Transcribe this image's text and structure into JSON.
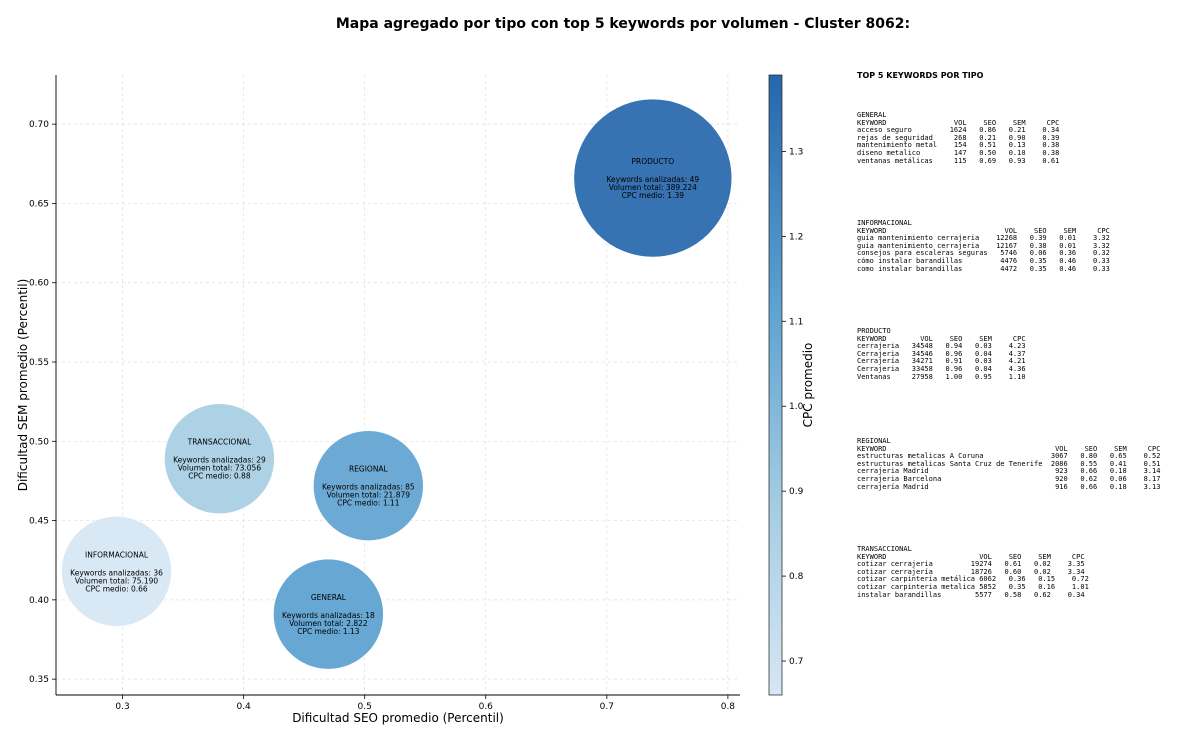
{
  "title": "Mapa agregado por tipo con top 5 keywords por volumen - Cluster 8062:",
  "chart_data": {
    "type": "scatter",
    "xlabel": "Dificultad SEO promedio (Percentil)",
    "ylabel": "Dificultad SEM promedio (Percentil)",
    "xlim": [
      0.245,
      0.81
    ],
    "ylim": [
      0.34,
      0.731
    ],
    "xticks": [
      "0.3",
      "0.4",
      "0.5",
      "0.6",
      "0.7",
      "0.8"
    ],
    "yticks": [
      "0.35",
      "0.40",
      "0.45",
      "0.50",
      "0.55",
      "0.60",
      "0.65",
      "0.70"
    ],
    "grid": true,
    "colorbar": {
      "label": "CPC promedio",
      "range": [
        0.66,
        1.39
      ],
      "ticks": [
        "0.7",
        "0.8",
        "0.9",
        "1.0",
        "1.1",
        "1.2",
        "1.3"
      ]
    },
    "bubble_info": {
      "keywords_label": "Keywords analizadas",
      "volume_label": "Volumen total",
      "cpc_label": "CPC medio"
    },
    "points": [
      {
        "name": "PRODUCTO",
        "x": 0.738,
        "y": 0.666,
        "keywords": "49",
        "volume": "389.224",
        "cpc": "1.39",
        "cpc_value": 1.39,
        "size_value": 389224
      },
      {
        "name": "TRANSACCIONAL",
        "x": 0.38,
        "y": 0.489,
        "keywords": "29",
        "volume": "73.056",
        "cpc": "0.88",
        "cpc_value": 0.88,
        "size_value": 73056
      },
      {
        "name": "REGIONAL",
        "x": 0.503,
        "y": 0.472,
        "keywords": "85",
        "volume": "21.879",
        "cpc": "1.11",
        "cpc_value": 1.11,
        "size_value": 21879
      },
      {
        "name": "INFORMACIONAL",
        "x": 0.295,
        "y": 0.418,
        "keywords": "36",
        "volume": "75.190",
        "cpc": "0.66",
        "cpc_value": 0.66,
        "size_value": 75190
      },
      {
        "name": "GENERAL",
        "x": 0.47,
        "y": 0.391,
        "keywords": "18",
        "volume": "2.822",
        "cpc": "1.13",
        "cpc_value": 1.13,
        "size_value": 2822
      }
    ]
  },
  "panel": {
    "title": "TOP 5 KEYWORDS POR TIPO",
    "groups": [
      {
        "name": "GENERAL",
        "header": "KEYWORD                VOL    SEO    SEM     CPC",
        "rows": [
          "acceso seguro         1624   0.86   0.21    0.34",
          "rejas de seguridad     268   0.21   0.90    0.39",
          "mantenimiento metal    154   0.51   0.13    0.38",
          "diseno metalico        147   0.50   0.10    0.38",
          "ventanas metálicas     115   0.69   0.93    0.61"
        ]
      },
      {
        "name": "INFORMACIONAL",
        "header": "KEYWORD                            VOL    SEO    SEM     CPC",
        "rows": [
          "guia mantenimiento cerrajeria    12268   0.39   0.01    3.32",
          "guia mantenimiento cerrajeria    12167   0.38   0.01    3.32",
          "consejos para escaleras seguras   5746   0.06   0.36    0.32",
          "cómo instalar barandillas         4476   0.35   0.46    0.33",
          "como instalar barandillas         4472   0.35   0.46    0.33"
        ]
      },
      {
        "name": "PRODUCTO",
        "header": "KEYWORD        VOL    SEO    SEM     CPC",
        "rows": [
          "cerrajeria   34548   0.94   0.03    4.23",
          "Cerrajeria   34546   0.96   0.04    4.37",
          "Cerrajería   34271   0.91   0.03    4.21",
          "Cerrajeria   33458   0.96   0.04    4.36",
          "Ventanas     27958   1.00   0.95    1.10"
        ]
      },
      {
        "name": "REGIONAL",
        "header": "KEYWORD                                        VOL    SEO    SEM     CPC",
        "rows": [
          "estructuras metalicas A Coruna                3067   0.80   0.65    0.52",
          "estructuras metalicas Santa Cruz de Tenerife  2086   0.55   0.41    0.51",
          "cerrajeria Madrid                              923   0.66   0.18    3.14",
          "cerrajeria Barcelona                           920   0.62   0.06    8.17",
          "cerrajería Madrid                              916   0.66   0.18    3.13"
        ]
      },
      {
        "name": "TRANSACCIONAL",
        "header": "KEYWORD                      VOL    SEO    SEM     CPC",
        "rows": [
          "cotizar cerrajeria         19274   0.61   0.02    3.35",
          "cotizar cerrajería         18726   0.60   0.02    3.34",
          "cotizar carpinteria metálica 6062   0.36   0.15    0.72",
          "cotizar carpinteria metalica 5852   0.35   0.16    1.01",
          "instalar barandillas        5577   0.58   0.62    0.34"
        ]
      }
    ]
  }
}
